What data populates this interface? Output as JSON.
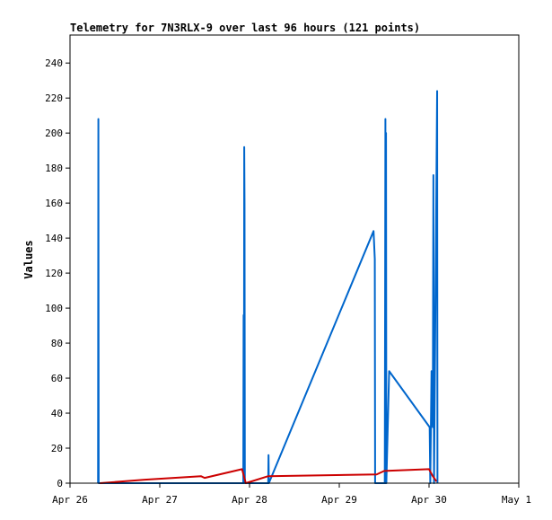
{
  "chart_data": {
    "type": "line",
    "title": "Telemetry for 7N3RLX-9 over last 96 hours (121 points)",
    "xlabel": "",
    "ylabel": "Values",
    "xlim": [
      "2024-04-26T00:00",
      "2024-05-01T00:00"
    ],
    "ylim": [
      0,
      256
    ],
    "x_ticks": [
      {
        "label": "Apr 26",
        "x": "2024-04-26T00:00"
      },
      {
        "label": "Apr 27",
        "x": "2024-04-27T00:00"
      },
      {
        "label": "Apr 28",
        "x": "2024-04-28T00:00"
      },
      {
        "label": "Apr 29",
        "x": "2024-04-29T00:00"
      },
      {
        "label": "Apr 30",
        "x": "2024-04-30T00:00"
      },
      {
        "label": "May 1",
        "x": "2024-05-01T00:00"
      }
    ],
    "y_ticks": [
      0,
      20,
      40,
      60,
      80,
      100,
      120,
      140,
      160,
      180,
      200,
      220,
      240
    ],
    "grid": false,
    "legend": "none",
    "series": [
      {
        "color": "#0066cc",
        "points": [
          [
            "2024-04-26T07:30",
            0
          ],
          [
            "2024-04-26T07:35",
            208
          ],
          [
            "2024-04-26T07:40",
            0
          ],
          [
            "2024-04-27T22:20",
            0
          ],
          [
            "2024-04-27T22:25",
            96
          ],
          [
            "2024-04-27T22:30",
            0
          ],
          [
            "2024-04-27T22:35",
            192
          ],
          [
            "2024-04-27T22:40",
            160
          ],
          [
            "2024-04-27T22:45",
            0
          ],
          [
            "2024-04-28T05:00",
            0
          ],
          [
            "2024-04-28T05:05",
            16
          ],
          [
            "2024-04-28T05:10",
            0
          ],
          [
            "2024-04-29T09:10",
            144
          ],
          [
            "2024-04-29T09:30",
            128
          ],
          [
            "2024-04-29T09:35",
            0
          ],
          [
            "2024-04-29T12:10",
            0
          ],
          [
            "2024-04-29T12:15",
            96
          ],
          [
            "2024-04-29T12:20",
            208
          ],
          [
            "2024-04-29T12:25",
            0
          ],
          [
            "2024-04-29T12:30",
            200
          ],
          [
            "2024-04-29T12:35",
            0
          ],
          [
            "2024-04-29T13:20",
            64
          ],
          [
            "2024-04-30T00:10",
            32
          ],
          [
            "2024-04-30T00:20",
            0
          ],
          [
            "2024-04-30T00:40",
            64
          ],
          [
            "2024-04-30T00:50",
            54
          ],
          [
            "2024-04-30T01:00",
            32
          ],
          [
            "2024-04-30T01:10",
            176
          ],
          [
            "2024-04-30T01:15",
            72
          ],
          [
            "2024-04-30T01:20",
            0
          ],
          [
            "2024-04-30T02:10",
            224
          ],
          [
            "2024-04-30T02:15",
            0
          ]
        ]
      },
      {
        "color": "#cc0000",
        "points": [
          [
            "2024-04-26T08:00",
            0
          ],
          [
            "2024-04-26T20:00",
            2
          ],
          [
            "2024-04-27T11:00",
            4
          ],
          [
            "2024-04-27T12:00",
            3
          ],
          [
            "2024-04-27T22:00",
            8
          ],
          [
            "2024-04-27T23:00",
            0
          ],
          [
            "2024-04-28T05:00",
            4
          ],
          [
            "2024-04-29T10:00",
            5
          ],
          [
            "2024-04-29T12:00",
            7
          ],
          [
            "2024-04-30T00:00",
            8
          ],
          [
            "2024-04-30T01:00",
            4
          ],
          [
            "2024-04-30T02:00",
            1
          ]
        ]
      },
      {
        "color": "#000000",
        "points": [
          [
            "2024-04-26T08:00",
            0
          ],
          [
            "2024-04-30T02:30",
            0
          ]
        ]
      }
    ]
  }
}
